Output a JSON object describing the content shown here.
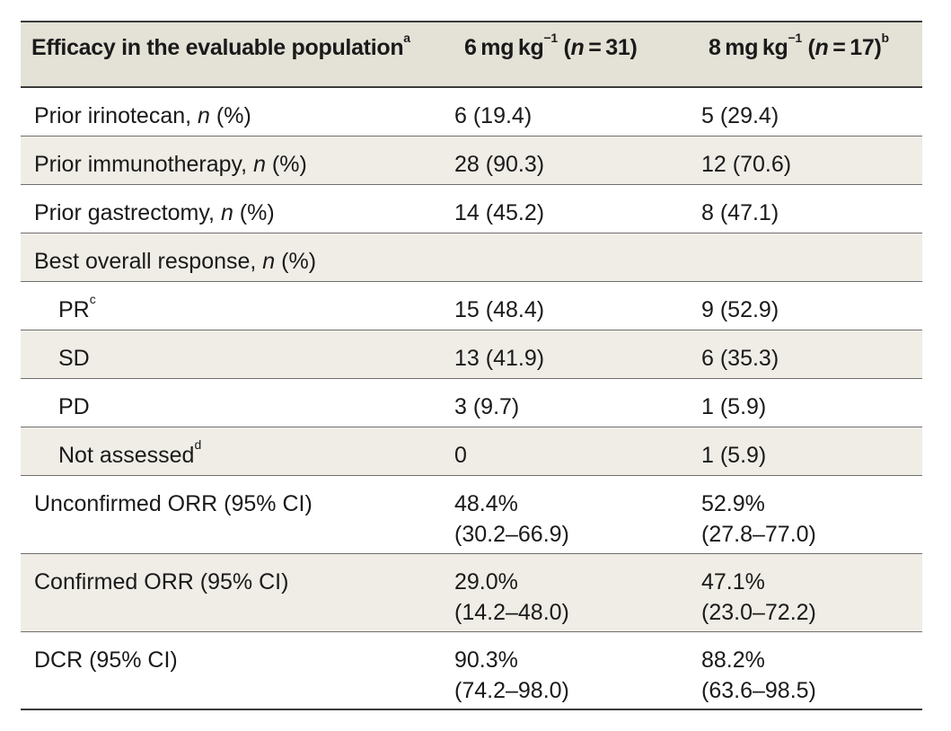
{
  "header": {
    "col1": "Efficacy in the evaluable population",
    "col1_sup": "a",
    "col2_pre": "6 mg kg",
    "col2_exp": "−1",
    "col2_open": " (",
    "col2_n": "n",
    "col2_val": " = 31)",
    "col3_pre": "8 mg kg",
    "col3_exp": "−1",
    "col3_open": " (",
    "col3_n": "n",
    "col3_val": " = 17)",
    "col3_sup": "b"
  },
  "rows": [
    {
      "label": "Prior irinotecan, ",
      "label_n": "n",
      "label_tail": " (%)",
      "v6": "6 (19.4)",
      "v8": "5 (29.4)"
    },
    {
      "label": "Prior immunotherapy, ",
      "label_n": "n",
      "label_tail": " (%)",
      "v6": "28 (90.3)",
      "v8": "12 (70.6)"
    },
    {
      "label": "Prior gastrectomy, ",
      "label_n": "n",
      "label_tail": " (%)",
      "v6": "14 (45.2)",
      "v8": "8 (47.1)"
    },
    {
      "label": "Best overall response, ",
      "label_n": "n",
      "label_tail": " (%)",
      "v6": "",
      "v8": ""
    },
    {
      "label": "PR",
      "label_sup": "c",
      "v6": "15 (48.4)",
      "v8": "9 (52.9)"
    },
    {
      "label": "SD",
      "v6": "13 (41.9)",
      "v8": "6 (35.3)"
    },
    {
      "label": "PD",
      "v6": "3 (9.7)",
      "v8": "1 (5.9)"
    },
    {
      "label": "Not assessed",
      "label_sup": "d",
      "v6": "0",
      "v8": "1 (5.9)"
    },
    {
      "label": "Unconfirmed ORR (95% CI)",
      "v6": "48.4%",
      "v6b": "(30.2–66.9)",
      "v8": "52.9%",
      "v8b": "(27.8–77.0)"
    },
    {
      "label": "Confirmed ORR (95% CI)",
      "v6": "29.0%",
      "v6b": "(14.2–48.0)",
      "v8": "47.1%",
      "v8b": "(23.0–72.2)"
    },
    {
      "label": "DCR (95% CI)",
      "v6": "90.3%",
      "v6b": "(74.2–98.0)",
      "v8": "88.2%",
      "v8b": "(63.6–98.5)"
    }
  ]
}
